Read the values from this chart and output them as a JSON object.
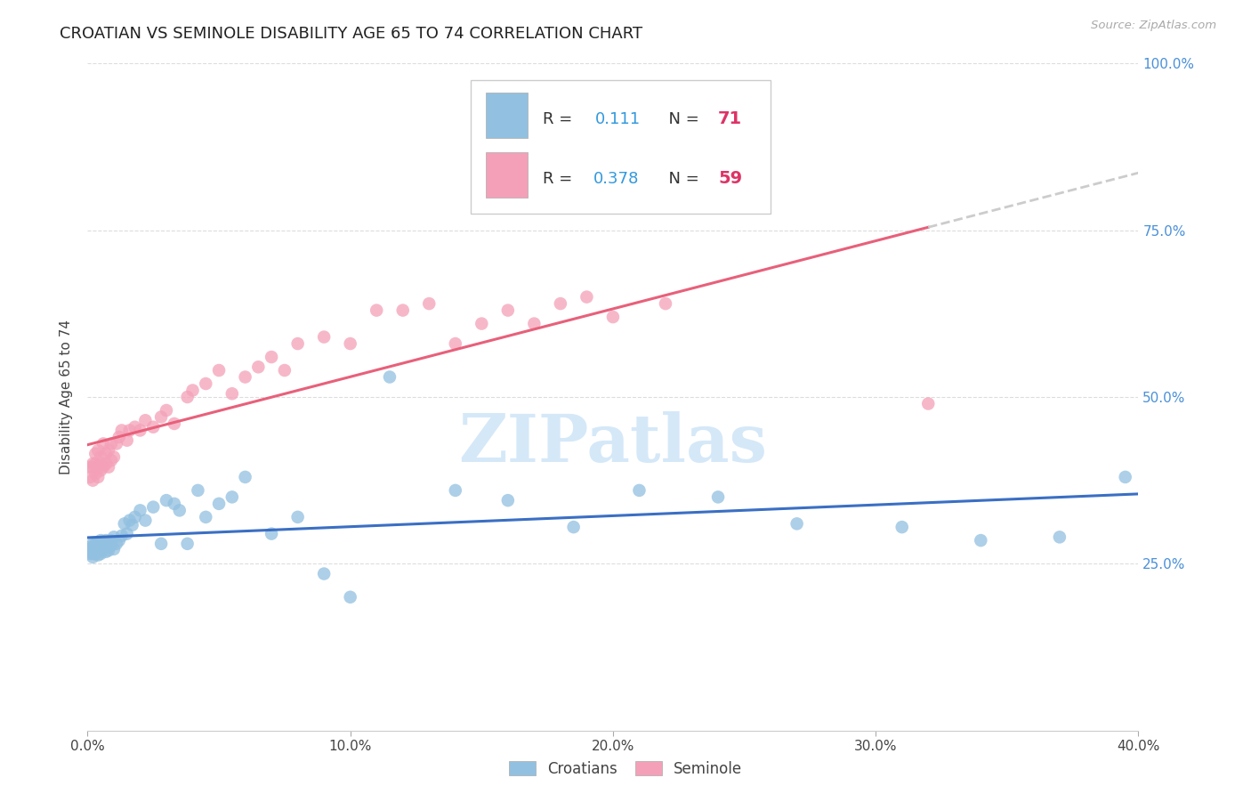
{
  "title": "CROATIAN VS SEMINOLE DISABILITY AGE 65 TO 74 CORRELATION CHART",
  "source": "Source: ZipAtlas.com",
  "ylabel": "Disability Age 65 to 74",
  "xlim": [
    0.0,
    0.4
  ],
  "ylim": [
    0.0,
    1.0
  ],
  "xticks": [
    0.0,
    0.1,
    0.2,
    0.3,
    0.4
  ],
  "yticks": [
    0.25,
    0.5,
    0.75,
    1.0
  ],
  "ytick_labels": [
    "25.0%",
    "50.0%",
    "75.0%",
    "100.0%"
  ],
  "xtick_labels": [
    "0.0%",
    "10.0%",
    "20.0%",
    "30.0%",
    "40.0%"
  ],
  "croatian_R": 0.111,
  "croatian_N": 71,
  "seminole_R": 0.378,
  "seminole_N": 59,
  "croatian_color": "#92C0E0",
  "seminole_color": "#F4A0B8",
  "croatian_line_color": "#3A6FC4",
  "seminole_line_color": "#E8607A",
  "dashed_line_color": "#CCCCCC",
  "watermark_color": "#D5E8F8",
  "croatian_x": [
    0.001,
    0.001,
    0.001,
    0.002,
    0.002,
    0.002,
    0.002,
    0.003,
    0.003,
    0.003,
    0.003,
    0.003,
    0.003,
    0.004,
    0.004,
    0.004,
    0.004,
    0.004,
    0.005,
    0.005,
    0.005,
    0.005,
    0.006,
    0.006,
    0.006,
    0.007,
    0.007,
    0.007,
    0.008,
    0.008,
    0.008,
    0.009,
    0.009,
    0.01,
    0.01,
    0.011,
    0.012,
    0.013,
    0.014,
    0.015,
    0.016,
    0.017,
    0.018,
    0.02,
    0.022,
    0.025,
    0.028,
    0.03,
    0.033,
    0.035,
    0.038,
    0.042,
    0.045,
    0.05,
    0.055,
    0.06,
    0.07,
    0.08,
    0.09,
    0.1,
    0.115,
    0.14,
    0.16,
    0.185,
    0.21,
    0.24,
    0.27,
    0.31,
    0.34,
    0.37,
    0.395
  ],
  "croatian_y": [
    0.27,
    0.265,
    0.275,
    0.26,
    0.275,
    0.28,
    0.265,
    0.27,
    0.28,
    0.265,
    0.275,
    0.27,
    0.268,
    0.272,
    0.268,
    0.275,
    0.28,
    0.263,
    0.27,
    0.278,
    0.265,
    0.285,
    0.272,
    0.28,
    0.275,
    0.268,
    0.278,
    0.285,
    0.27,
    0.28,
    0.275,
    0.278,
    0.285,
    0.272,
    0.29,
    0.28,
    0.285,
    0.292,
    0.31,
    0.295,
    0.315,
    0.308,
    0.32,
    0.33,
    0.315,
    0.335,
    0.28,
    0.345,
    0.34,
    0.33,
    0.28,
    0.36,
    0.32,
    0.34,
    0.35,
    0.38,
    0.295,
    0.32,
    0.235,
    0.2,
    0.53,
    0.36,
    0.345,
    0.305,
    0.36,
    0.35,
    0.31,
    0.305,
    0.285,
    0.29,
    0.38
  ],
  "seminole_x": [
    0.001,
    0.001,
    0.002,
    0.002,
    0.002,
    0.003,
    0.003,
    0.003,
    0.004,
    0.004,
    0.004,
    0.005,
    0.005,
    0.005,
    0.006,
    0.006,
    0.007,
    0.007,
    0.008,
    0.008,
    0.009,
    0.009,
    0.01,
    0.011,
    0.012,
    0.013,
    0.015,
    0.016,
    0.018,
    0.02,
    0.022,
    0.025,
    0.028,
    0.03,
    0.033,
    0.038,
    0.04,
    0.045,
    0.05,
    0.055,
    0.06,
    0.065,
    0.07,
    0.075,
    0.08,
    0.09,
    0.1,
    0.11,
    0.12,
    0.13,
    0.14,
    0.15,
    0.16,
    0.17,
    0.18,
    0.19,
    0.2,
    0.22,
    0.32
  ],
  "seminole_y": [
    0.38,
    0.395,
    0.375,
    0.4,
    0.395,
    0.385,
    0.4,
    0.415,
    0.38,
    0.395,
    0.42,
    0.39,
    0.4,
    0.41,
    0.395,
    0.43,
    0.4,
    0.415,
    0.395,
    0.42,
    0.405,
    0.43,
    0.41,
    0.43,
    0.44,
    0.45,
    0.435,
    0.45,
    0.455,
    0.45,
    0.465,
    0.455,
    0.47,
    0.48,
    0.46,
    0.5,
    0.51,
    0.52,
    0.54,
    0.505,
    0.53,
    0.545,
    0.56,
    0.54,
    0.58,
    0.59,
    0.58,
    0.63,
    0.63,
    0.64,
    0.58,
    0.61,
    0.63,
    0.61,
    0.64,
    0.65,
    0.62,
    0.64,
    0.49
  ]
}
